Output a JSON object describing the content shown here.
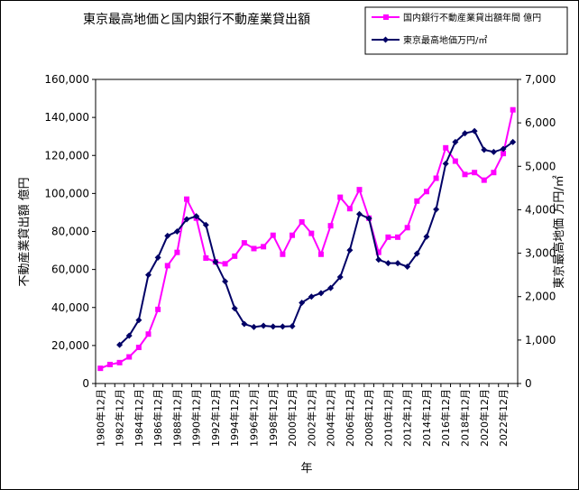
{
  "chart_data": {
    "type": "line",
    "title": "東京最高地価と国内銀行不動産業貸出額",
    "xlabel": "年",
    "ylabel_left": "不動産業貸出額 億円",
    "ylabel_right": "東京最高地価 万円/㎡",
    "ylim_left": [
      0,
      160000
    ],
    "ylim_right": [
      0,
      7000
    ],
    "yticks_left": [
      "0",
      "20,000",
      "40,000",
      "60,000",
      "80,000",
      "100,000",
      "120,000",
      "140,000",
      "160,000"
    ],
    "yticks_right": [
      "0",
      "1,000",
      "2,000",
      "3,000",
      "4,000",
      "5,000",
      "6,000",
      "7,000"
    ],
    "categories": [
      "1980年12月",
      "1981年12月",
      "1982年12月",
      "1983年12月",
      "1984年12月",
      "1985年12月",
      "1986年12月",
      "1987年12月",
      "1988年12月",
      "1989年12月",
      "1990年12月",
      "1991年12月",
      "1992年12月",
      "1993年12月",
      "1994年12月",
      "1995年12月",
      "1996年12月",
      "1997年12月",
      "1998年12月",
      "1999年12月",
      "2000年12月",
      "2001年12月",
      "2002年12月",
      "2003年12月",
      "2004年12月",
      "2005年12月",
      "2006年12月",
      "2007年12月",
      "2008年12月",
      "2009年12月",
      "2010年12月",
      "2011年12月",
      "2012年12月",
      "2013年12月",
      "2014年12月",
      "2015年12月",
      "2016年12月",
      "2017年12月",
      "2018年12月",
      "2019年12月",
      "2020年12月",
      "2021年12月",
      "2022年12月",
      "2023年12月"
    ],
    "xtick_labels": [
      "1980年12月",
      "1982年12月",
      "1984年12月",
      "1986年12月",
      "1988年12月",
      "1990年12月",
      "1992年12月",
      "1994年12月",
      "1996年12月",
      "1998年12月",
      "2000年12月",
      "2002年12月",
      "2004年12月",
      "2006年12月",
      "2008年12月",
      "2010年12月",
      "2012年12月",
      "2014年12月",
      "2016年12月",
      "2018年12月",
      "2020年12月",
      "2022年12月"
    ],
    "series": [
      {
        "name": "国内銀行不動産業貸出額年間 億円",
        "axis": "left",
        "color": "#ff00ff",
        "marker": "square",
        "values": [
          8000,
          10000,
          11000,
          14000,
          19000,
          26000,
          39000,
          62000,
          69000,
          97000,
          87000,
          66000,
          64000,
          63000,
          67000,
          74000,
          71000,
          72000,
          78000,
          68000,
          78000,
          85000,
          79000,
          68000,
          83000,
          98000,
          92000,
          102000,
          87000,
          69000,
          77000,
          77000,
          82000,
          96000,
          101000,
          108000,
          124000,
          117000,
          110000,
          111000,
          107000,
          111000,
          121000,
          144000
        ]
      },
      {
        "name": "東京最高地価万円/㎡",
        "axis": "right",
        "color": "#000066",
        "marker": "diamond",
        "values": [
          null,
          null,
          890,
          1100,
          1460,
          2500,
          2900,
          3400,
          3500,
          3780,
          3850,
          3650,
          2800,
          2350,
          1730,
          1370,
          1300,
          1330,
          1310,
          1310,
          1320,
          1860,
          2000,
          2080,
          2200,
          2450,
          3070,
          3900,
          3800,
          2850,
          2770,
          2770,
          2690,
          2990,
          3380,
          4010,
          5060,
          5560,
          5760,
          5810,
          5380,
          5330,
          5400,
          5560
        ]
      }
    ],
    "legend": {
      "position": "top-right",
      "entries": [
        "国内銀行不動産業貸出額年間 億円",
        "東京最高地価万円/㎡"
      ]
    }
  }
}
